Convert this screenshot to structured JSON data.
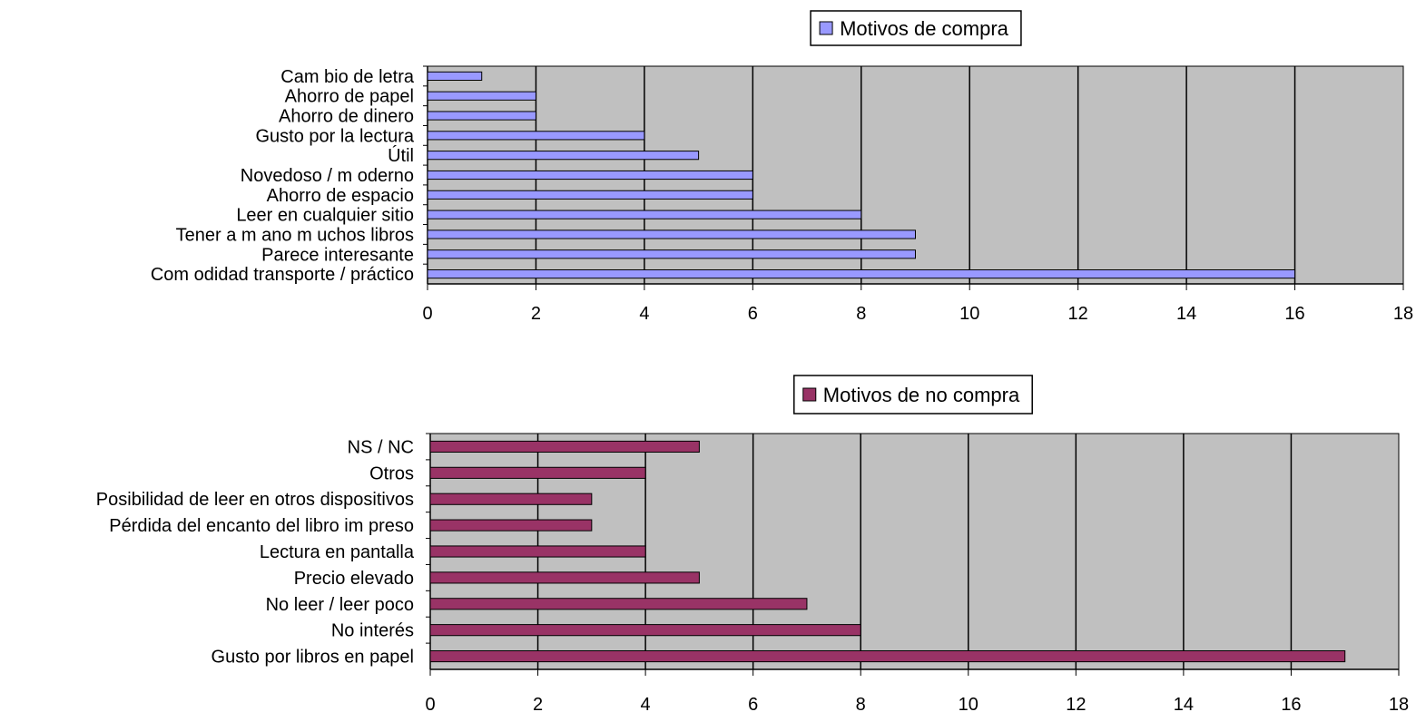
{
  "chart_data": [
    {
      "type": "bar",
      "orientation": "horizontal",
      "categories": [
        "Cam bio de letra",
        "Ahorro de papel",
        "Ahorro de dinero",
        "Gusto por la lectura",
        "Útil",
        "Novedoso / m oderno",
        "Ahorro de espacio",
        "Leer en cualquier sitio",
        "Tener a m ano m uchos libros",
        "Parece interesante",
        "Com odidad transporte / práctico"
      ],
      "series": [
        {
          "name": "Motivos de compra",
          "values": [
            1,
            2,
            2,
            4,
            5,
            6,
            6,
            8,
            9,
            9,
            16
          ],
          "color": "#9999ff"
        }
      ],
      "xlim": [
        0,
        18
      ],
      "xticks": [
        "0",
        "2",
        "4",
        "6",
        "8",
        "10",
        "12",
        "14",
        "16",
        "18"
      ],
      "grid": true,
      "plot_background": "#c0c0c0",
      "legend_position": "top"
    },
    {
      "type": "bar",
      "orientation": "horizontal",
      "categories": [
        "NS / NC",
        "Otros",
        "Posibilidad de leer en otros dispositivos",
        "Pérdida del encanto del libro im preso",
        "Lectura en pantalla",
        "Precio elevado",
        "No leer / leer poco",
        "No interés",
        "Gusto por libros en papel"
      ],
      "series": [
        {
          "name": "Motivos de no compra",
          "values": [
            5,
            4,
            3,
            3,
            4,
            5,
            7,
            8,
            17
          ],
          "color": "#993366"
        }
      ],
      "xlim": [
        0,
        18
      ],
      "xticks": [
        "0",
        "2",
        "4",
        "6",
        "8",
        "10",
        "12",
        "14",
        "16",
        "18"
      ],
      "grid": true,
      "plot_background": "#c0c0c0",
      "legend_position": "top"
    }
  ]
}
